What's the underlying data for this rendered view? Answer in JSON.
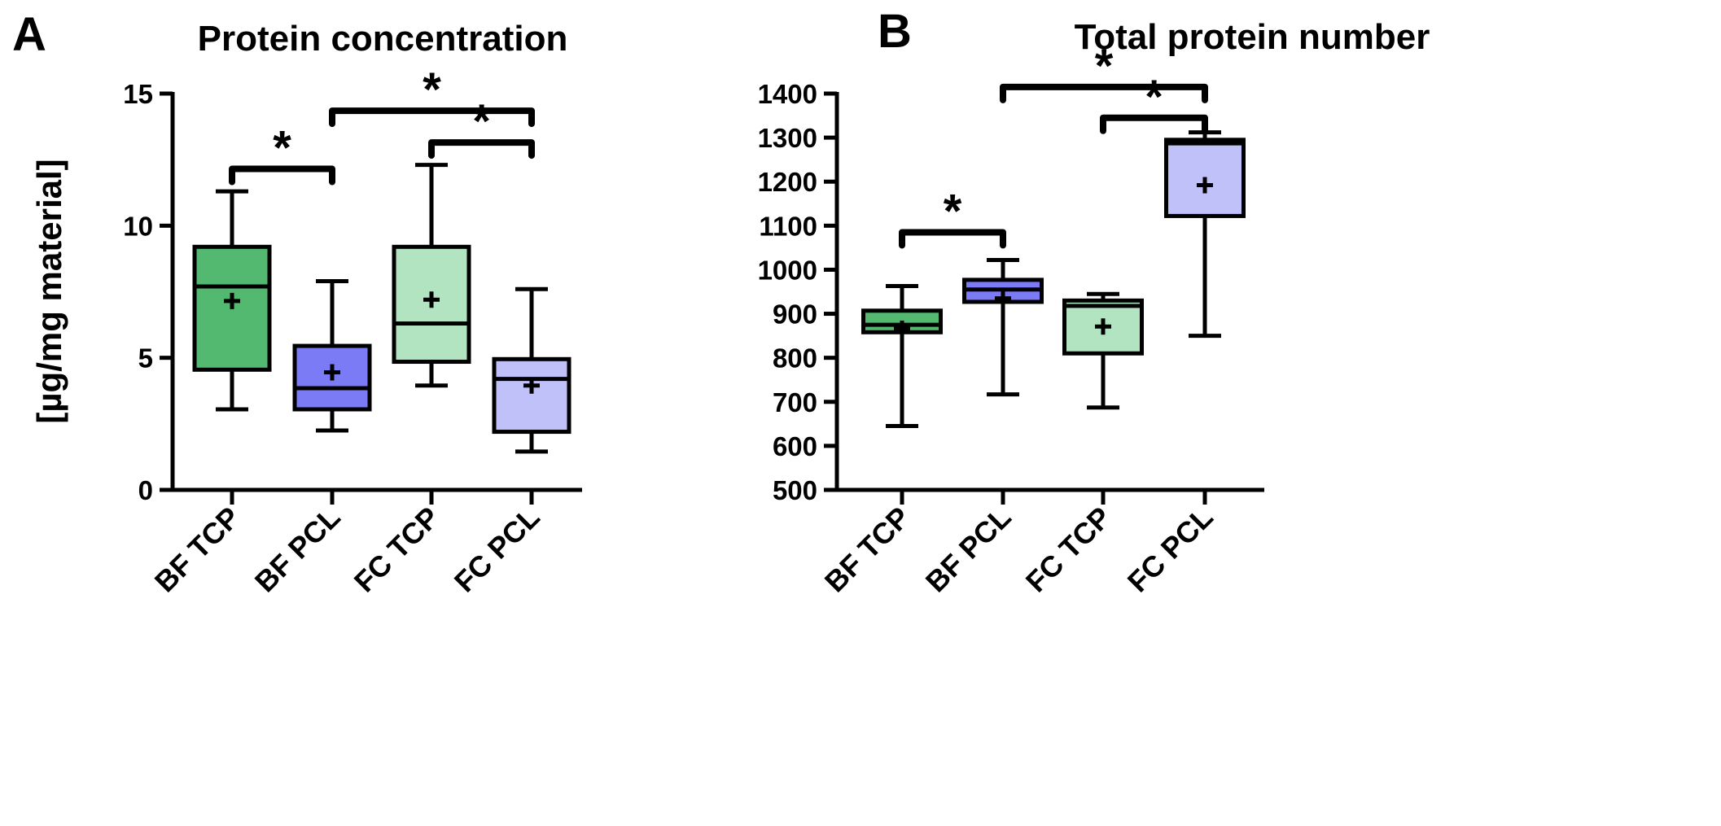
{
  "chart_data": [
    {
      "type": "box",
      "panel_label": "A",
      "title": "Protein concentration",
      "ylabel": "[µg/mg material]",
      "xlabel": "",
      "ylim": [
        0,
        15
      ],
      "yticks": [
        0,
        5,
        10,
        15
      ],
      "categories": [
        "BF TCP",
        "BF PCL",
        "FC TCP",
        "FC PCL"
      ],
      "colors": [
        "#53b971",
        "#7b7bf5",
        "#b3e4c1",
        "#c1c1f9"
      ],
      "boxes": [
        {
          "min": 3.05,
          "q1": 4.55,
          "median": 7.7,
          "q3": 9.2,
          "max": 11.3,
          "mean": 7.15
        },
        {
          "min": 2.25,
          "q1": 3.05,
          "median": 3.85,
          "q3": 5.45,
          "max": 7.9,
          "mean": 4.45
        },
        {
          "min": 3.95,
          "q1": 4.85,
          "median": 6.3,
          "q3": 9.2,
          "max": 12.3,
          "mean": 7.2
        },
        {
          "min": 1.45,
          "q1": 2.2,
          "median": 4.2,
          "q3": 4.95,
          "max": 7.6,
          "mean": 3.95
        }
      ],
      "significance": [
        {
          "from": 0,
          "to": 1,
          "label": "*",
          "y": 12.15
        },
        {
          "from": 2,
          "to": 3,
          "label": "*",
          "y": 13.15
        },
        {
          "from": 1,
          "to": 3,
          "label": "*",
          "y": 14.35
        }
      ]
    },
    {
      "type": "box",
      "panel_label": "B",
      "title": "Total protein number",
      "ylabel": "",
      "xlabel": "",
      "ylim": [
        500,
        1400
      ],
      "yticks": [
        500,
        600,
        700,
        800,
        900,
        1000,
        1100,
        1200,
        1300,
        1400
      ],
      "categories": [
        "BF TCP",
        "BF PCL",
        "FC TCP",
        "FC PCL"
      ],
      "colors": [
        "#53b971",
        "#7b7bf5",
        "#b3e4c1",
        "#c1c1f9"
      ],
      "boxes": [
        {
          "min": 645,
          "q1": 858,
          "median": 875,
          "q3": 907,
          "max": 963,
          "mean": 866
        },
        {
          "min": 717,
          "q1": 927,
          "median": 955,
          "q3": 977,
          "max": 1022,
          "mean": 935
        },
        {
          "min": 687,
          "q1": 810,
          "median": 918,
          "q3": 930,
          "max": 945,
          "mean": 871
        },
        {
          "min": 850,
          "q1": 1122,
          "median": 1287,
          "q3": 1295,
          "max": 1312,
          "mean": 1192
        }
      ],
      "significance": [
        {
          "from": 0,
          "to": 1,
          "label": "*",
          "y": 1085
        },
        {
          "from": 2,
          "to": 3,
          "label": "*",
          "y": 1345
        },
        {
          "from": 1,
          "to": 3,
          "label": "*",
          "y": 1415
        }
      ]
    }
  ]
}
